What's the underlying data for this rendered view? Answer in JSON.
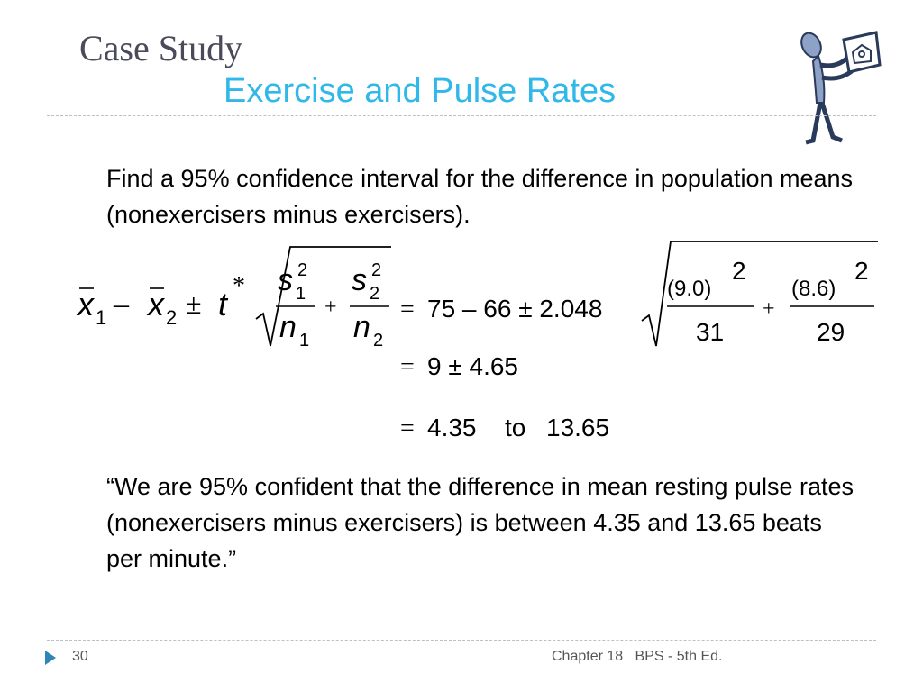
{
  "title": {
    "line1": "Case Study",
    "line2": "Exercise and Pulse Rates"
  },
  "intro": "Find a 95% confidence interval for the difference in population means (nonexercisers minus exercisers).",
  "formula": {
    "lhs": {
      "x": "x",
      "sub1": "1",
      "minus": "–",
      "sub2": "2",
      "pm": "±",
      "t": "t",
      "star": "*",
      "s": "s",
      "n": "n",
      "sup2": "2",
      "plus": "+"
    },
    "step1": {
      "eq": "=",
      "expr": "75 – 66 ± 2.048",
      "num1": "(9.0)",
      "exp1": "2",
      "den1": "31",
      "plus": "+",
      "num2": "(8.6)",
      "exp2": "2",
      "den2": "29"
    },
    "step2": {
      "eq": "=",
      "expr": "9 ± 4.65"
    },
    "step3": {
      "eq": "=",
      "low": "4.35",
      "to": "to",
      "high": "13.65"
    }
  },
  "conclusion": "“We are 95% confident that the difference in mean resting pulse rates (nonexercisers minus exercisers) is between 4.35 and 13.65 beats per minute.”",
  "footer": {
    "page": "30",
    "chapter": "Chapter 18",
    "book": "BPS - 5th Ed."
  },
  "colors": {
    "title": "#4a4a5a",
    "subtitle": "#2fb8e8",
    "arrow": "#2d86b6",
    "figure": "#8ea2c8"
  },
  "icons": {
    "figure": "person-holding-sign-icon",
    "footer": "triangle-arrow-icon"
  }
}
